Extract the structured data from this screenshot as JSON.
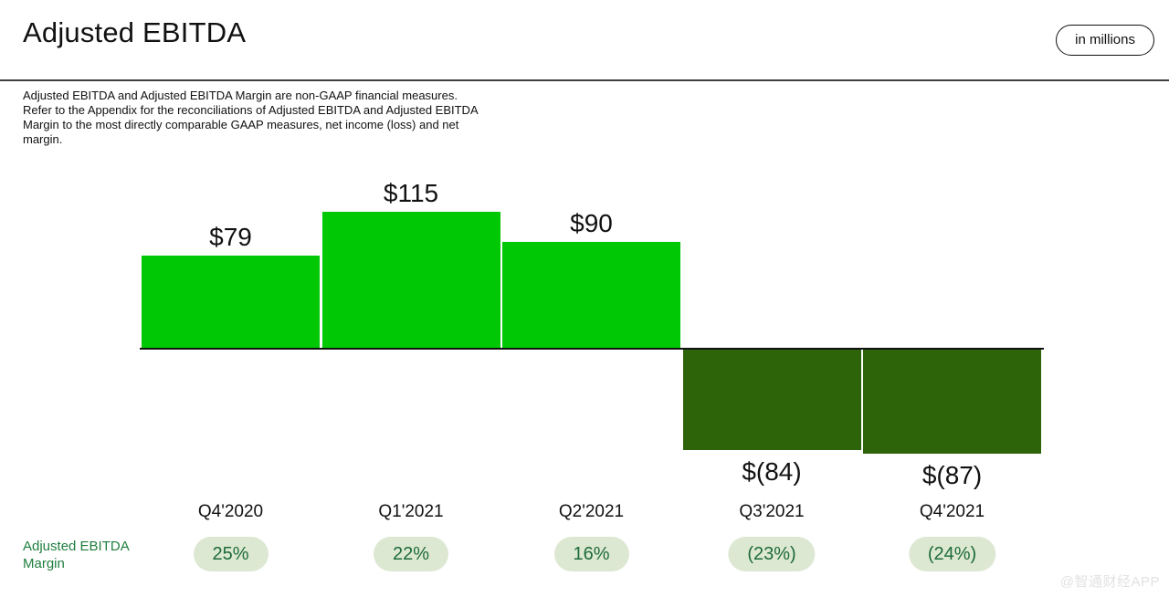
{
  "header": {
    "title": "Adjusted EBITDA",
    "unit_label": "in millions"
  },
  "disclaimer": {
    "lines": [
      "Adjusted EBITDA and Adjusted EBITDA Margin are non-GAAP financial measures.",
      "Refer to the Appendix for the reconciliations of Adjusted EBITDA and Adjusted EBITDA",
      "Margin to the most directly comparable GAAP measures, net income (loss) and net",
      "margin."
    ]
  },
  "chart_data": {
    "type": "bar",
    "title": "Adjusted EBITDA",
    "unit": "USD millions",
    "categories": [
      "Q4'2020",
      "Q1'2021",
      "Q2'2021",
      "Q3'2021",
      "Q4'2021"
    ],
    "values": [
      79,
      115,
      90,
      -84,
      -87
    ],
    "value_labels": [
      "$79",
      "$115",
      "$90",
      "$(84)",
      "$(87)"
    ],
    "margin_row_label": "Adjusted EBITDA Margin",
    "margin_labels": [
      "25%",
      "22%",
      "16%",
      "(23%)",
      "(24%)"
    ],
    "margins_pct": [
      25,
      22,
      16,
      -23,
      -24
    ],
    "baseline": 0,
    "grid": "off",
    "colors": {
      "positive_bar": "#00c805",
      "negative_bar": "#2d640a",
      "margin_pill_bg": "#dde8d3",
      "margin_pill_text": "#1c6a3a",
      "margin_row_label_text": "#1e7e3e",
      "axis_line": "#111111"
    }
  },
  "watermark": {
    "text": "@智通财经APP"
  }
}
